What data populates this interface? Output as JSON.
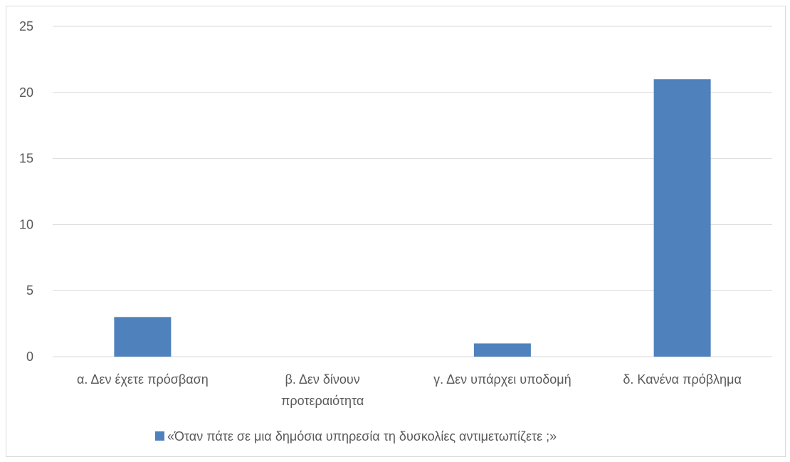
{
  "colors": {
    "bar": "#4f81bd",
    "grid": "#d9d9d9",
    "text": "#595959"
  },
  "chart_data": {
    "type": "bar",
    "title": "",
    "xlabel": "",
    "ylabel": "",
    "ylim": [
      0,
      25
    ],
    "yticks": [
      "0",
      "5",
      "10",
      "15",
      "20",
      "25"
    ],
    "grid": true,
    "legend_position": "bottom",
    "categories": [
      [
        "α. Δεν έχετε πρόσβαση"
      ],
      [
        "β. Δεν δίνουν",
        "προτεραιότητα"
      ],
      [
        "γ. Δεν υπάρχει υποδομή"
      ],
      [
        "δ. Κανένα πρόβλημα"
      ]
    ],
    "series": [
      {
        "name": "«Όταν πάτε σε μια δημόσια υπηρεσία τη δυσκολίες αντιμετωπίζετε ;»",
        "values": [
          3,
          0,
          1,
          21
        ]
      }
    ]
  }
}
